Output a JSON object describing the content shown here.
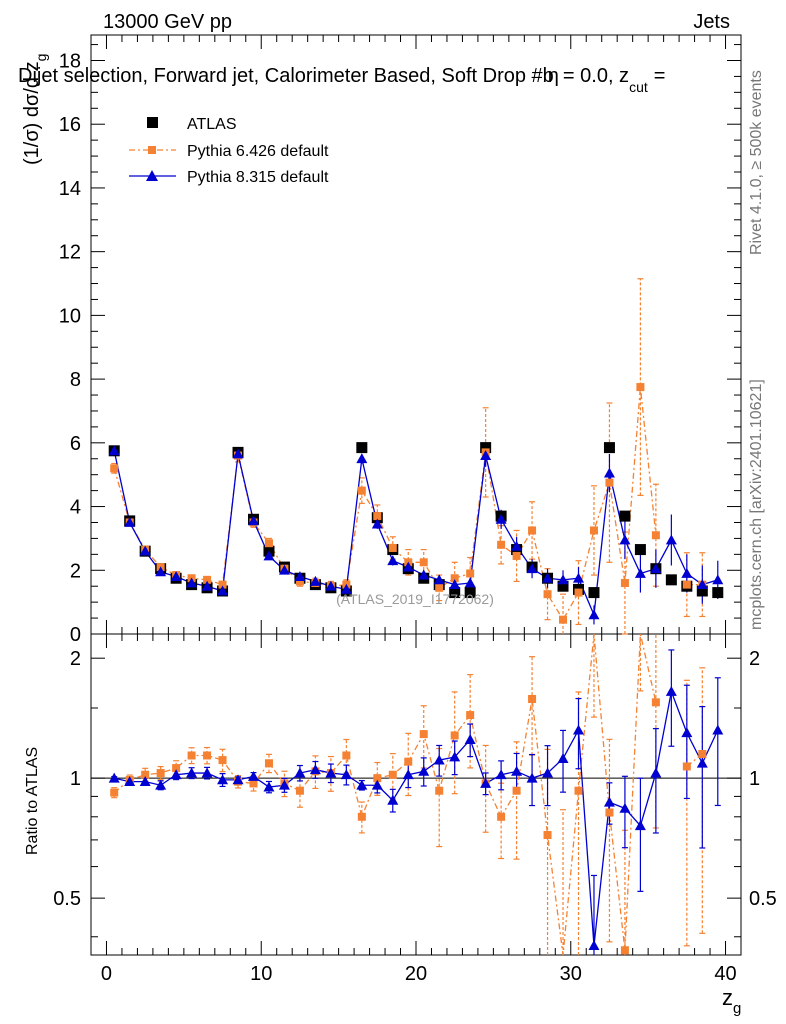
{
  "header": {
    "left": "13000 GeV pp",
    "right": "Jets",
    "subtitle": "Dijet selection, Forward jet, Calorimeter Based, Soft Drop #b",
    "subtitle_tail": "= 0.0, z",
    "subtitle_sub": "cut",
    "subtitle_end": "=",
    "subtitle_eta": "η"
  },
  "side": {
    "rivet": "Rivet 4.1.0, ≥ 500k events",
    "mcplots": "mcplots.cern.ch [arXiv:2401.10621]"
  },
  "watermark": "(ATLAS_2019_I1772062)",
  "axes": {
    "ylabel_prefix": "(1/σ) dσ/d z",
    "ylabel_sub": "g",
    "ratio_ylabel": "Ratio to ATLAS",
    "xlabel": "z",
    "xlabel_sub": "g"
  },
  "colors": {
    "atlas": "#000000",
    "pythia6": "#f58232",
    "pythia8": "#0000d0"
  },
  "chart_data": {
    "type": "scatter",
    "title": "Dijet selection, Forward jet, Calorimeter Based, Soft Drop",
    "xlim": [
      -1,
      41
    ],
    "ylim": [
      0,
      18.8
    ],
    "ratio_ylim": [
      0.36,
      2.3
    ],
    "ratio_scale": "log",
    "xticks": [
      "0",
      "10",
      "20",
      "30",
      "40"
    ],
    "yticks": [
      "0",
      "2",
      "4",
      "6",
      "8",
      "10",
      "12",
      "14",
      "16",
      "18"
    ],
    "ratio_yticks": [
      "0.5",
      "1",
      "2"
    ],
    "legend_position": "top-left",
    "x": [
      0.5,
      1.5,
      2.5,
      3.5,
      4.5,
      5.5,
      6.5,
      7.5,
      8.5,
      9.5,
      10.5,
      11.5,
      12.5,
      13.5,
      14.5,
      15.5,
      16.5,
      17.5,
      18.5,
      19.5,
      20.5,
      21.5,
      22.5,
      23.5,
      24.5,
      25.5,
      26.5,
      27.5,
      28.5,
      29.5,
      30.5,
      31.5,
      32.5,
      33.5,
      34.5,
      35.5,
      36.5,
      37.5,
      38.5,
      39.5
    ],
    "series": [
      {
        "name": "ATLAS",
        "marker": "square",
        "values": [
          5.75,
          3.55,
          2.6,
          2.05,
          1.75,
          1.55,
          1.45,
          1.35,
          5.7,
          3.6,
          2.6,
          2.1,
          1.75,
          1.55,
          1.45,
          1.35,
          5.85,
          3.65,
          2.65,
          2.05,
          1.75,
          1.55,
          1.3,
          1.3,
          5.85,
          3.7,
          2.65,
          2.1,
          1.75,
          1.5,
          1.4,
          1.3,
          5.85,
          3.7,
          2.65,
          2.05,
          1.7,
          1.5,
          1.35,
          1.3
        ]
      },
      {
        "name": "Pythia 6.426 default",
        "marker": "square",
        "values": [
          5.2,
          3.5,
          2.65,
          2.1,
          1.85,
          1.75,
          1.7,
          1.55,
          5.6,
          3.5,
          2.85,
          2.05,
          1.65,
          1.6,
          1.5,
          1.55,
          4.5,
          3.7,
          2.7,
          2.25,
          2.25,
          1.45,
          1.75,
          1.9,
          5.7,
          2.8,
          2.45,
          3.25,
          1.25,
          0.45,
          1.3,
          3.25,
          4.75,
          1.6,
          7.75,
          3.1,
          null,
          1.55,
          1.55,
          null
        ],
        "yerr": [
          0.15,
          0.1,
          0.1,
          0.08,
          0.08,
          0.08,
          0.08,
          0.1,
          0.2,
          0.15,
          0.15,
          0.15,
          0.15,
          0.15,
          0.15,
          0.15,
          0.4,
          0.35,
          0.35,
          0.4,
          0.4,
          0.4,
          0.5,
          0.5,
          1.4,
          0.6,
          0.8,
          0.9,
          0.8,
          0.8,
          1.0,
          1.4,
          2.5,
          1.6,
          3.4,
          1.6,
          0.0,
          1.0,
          1.0,
          0.0
        ],
        "ratio": [
          0.92,
          0.99,
          1.02,
          1.03,
          1.06,
          1.14,
          1.14,
          1.11,
          0.98,
          0.97,
          1.09,
          0.97,
          0.93,
          1.04,
          1.03,
          1.14,
          0.8,
          1.0,
          1.02,
          1.1,
          1.29,
          0.93,
          1.28,
          1.44,
          0.97,
          0.8,
          0.93,
          1.58,
          0.72,
          0.3,
          0.93,
          2.5,
          0.82,
          0.37,
          2.95,
          1.55,
          null,
          1.07,
          1.15,
          null
        ]
      },
      {
        "name": "Pythia 8.315 default",
        "marker": "triangle",
        "values": [
          5.75,
          3.5,
          2.6,
          1.95,
          1.8,
          1.6,
          1.5,
          1.35,
          5.65,
          3.55,
          2.45,
          2.0,
          1.8,
          1.65,
          1.5,
          1.4,
          5.5,
          3.45,
          2.3,
          2.1,
          1.85,
          1.7,
          1.55,
          1.6,
          5.6,
          3.6,
          2.75,
          2.05,
          1.75,
          1.7,
          1.75,
          0.6,
          5.05,
          2.95,
          1.9,
          2.05,
          2.95,
          1.9,
          1.55,
          1.7
        ],
        "yerr": [
          0.05,
          0.05,
          0.05,
          0.05,
          0.05,
          0.05,
          0.05,
          0.05,
          0.1,
          0.08,
          0.08,
          0.08,
          0.08,
          0.08,
          0.08,
          0.08,
          0.15,
          0.15,
          0.15,
          0.15,
          0.15,
          0.15,
          0.15,
          0.15,
          0.35,
          0.3,
          0.3,
          0.3,
          0.3,
          0.3,
          0.35,
          0.3,
          0.6,
          0.6,
          0.6,
          0.6,
          0.8,
          0.6,
          0.6,
          0.6
        ],
        "ratio": [
          1.0,
          0.98,
          0.98,
          0.96,
          1.02,
          1.03,
          1.03,
          0.99,
          0.99,
          1.01,
          0.95,
          0.96,
          1.03,
          1.05,
          1.03,
          1.02,
          0.96,
          0.96,
          0.88,
          1.02,
          1.04,
          1.11,
          1.13,
          1.25,
          0.97,
          1.02,
          1.04,
          1.0,
          1.03,
          1.12,
          1.32,
          0.38,
          0.87,
          0.84,
          0.76,
          1.03,
          1.65,
          1.3,
          1.09,
          1.32
        ]
      }
    ]
  }
}
